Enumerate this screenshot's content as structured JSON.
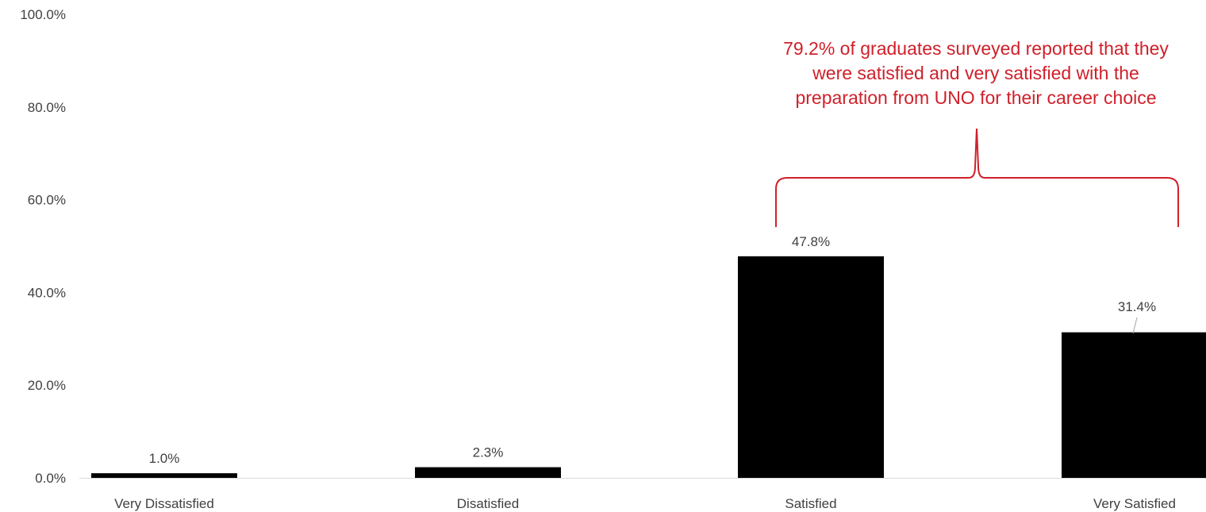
{
  "chart_data": {
    "type": "bar",
    "categories": [
      "Very Dissatisfied",
      "Disatisfied",
      "Satisfied",
      "Very Satisfied"
    ],
    "values": [
      1.0,
      2.3,
      47.8,
      31.4
    ],
    "value_labels": [
      "1.0%",
      "2.3%",
      "47.8%",
      "31.4%"
    ],
    "ylim": [
      0,
      100
    ],
    "yticks": [
      0,
      20,
      40,
      60,
      80,
      100
    ],
    "ytick_labels": [
      "0.0%",
      "20.0%",
      "40.0%",
      "60.0%",
      "80.0%",
      "100.0%"
    ],
    "title": "",
    "xlabel": "",
    "ylabel": "",
    "grid": false,
    "bar_color": "#000000",
    "annotation": {
      "lines": [
        "79.2% of graduates surveyed reported that they",
        "were satisfied and very satisfied with the",
        "preparation from UNO for their career choice"
      ],
      "color": "#d0202a",
      "brace_spans_categories": [
        "Satisfied",
        "Very Satisfied"
      ]
    }
  }
}
